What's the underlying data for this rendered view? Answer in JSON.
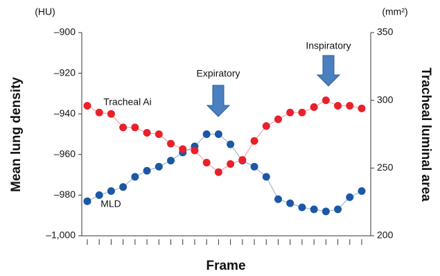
{
  "chart_data": {
    "type": "line",
    "x_label": "Frame",
    "y_label": "Mean lung density",
    "y2_label": "Tracheal luminal area",
    "y_unit": "(HU)",
    "y2_unit": "(mm²)",
    "annotations": [
      "Expiratory",
      "Inspiratory"
    ],
    "categories": [
      null,
      null,
      null,
      null,
      null,
      null,
      null,
      null,
      null,
      null,
      null,
      null,
      null,
      null,
      null,
      null,
      null,
      null,
      null,
      null,
      null,
      null,
      null,
      null
    ],
    "series": [
      {
        "name": "MLD",
        "color": "#1b58a5",
        "axis": "y",
        "values": [
          -983,
          -980,
          -978,
          -976,
          -971,
          -968,
          -966,
          -963,
          -959,
          -956,
          -950,
          -950,
          -955,
          -963,
          -966,
          -971,
          -982,
          -984,
          -986,
          -987,
          -988,
          -987,
          -981,
          -978
        ]
      },
      {
        "name": "Tracheal Ai",
        "color": "#e8212b",
        "axis": "y2",
        "values": [
          296,
          291,
          290,
          280,
          280,
          276,
          275,
          268,
          264,
          263,
          254,
          247,
          253,
          256,
          270,
          281,
          286,
          291,
          291,
          295,
          300,
          296,
          296,
          294
        ]
      }
    ],
    "ylim": [
      -1000,
      -900
    ],
    "yticks": [
      {
        "value": -1000,
        "label": "–1,000"
      },
      {
        "value": -980,
        "label": "–980"
      },
      {
        "value": -960,
        "label": "–960"
      },
      {
        "value": -940,
        "label": "–940"
      },
      {
        "value": -920,
        "label": "–920"
      },
      {
        "value": -900,
        "label": "–900"
      }
    ],
    "y2lim": [
      200,
      350
    ],
    "y2ticks": [
      200,
      250,
      300,
      350
    ]
  }
}
